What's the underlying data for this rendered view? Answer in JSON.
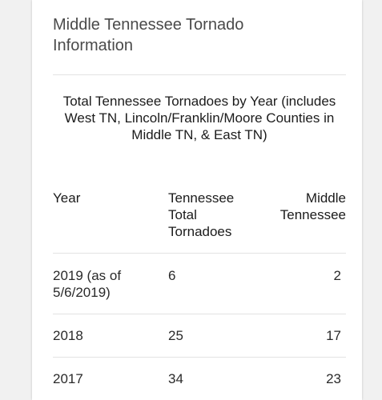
{
  "card": {
    "title": "Middle Tennessee Tornado Information"
  },
  "table": {
    "caption": "Total Tennessee Tornadoes by Year (includes West TN, Lincoln/Franklin/Moore Counties in Middle TN, & East TN)",
    "headers": {
      "year": "Year",
      "tennessee_total": "Tennessee Total Tornadoes",
      "middle_tennessee": "Middle Tennessee"
    },
    "rows": [
      {
        "year": "2019 (as of 5/6/2019)",
        "tennessee_total": "6",
        "middle_tennessee": "2"
      },
      {
        "year": "2018",
        "tennessee_total": "25",
        "middle_tennessee": "17"
      },
      {
        "year": "2017",
        "tennessee_total": "34",
        "middle_tennessee": "23"
      }
    ]
  }
}
